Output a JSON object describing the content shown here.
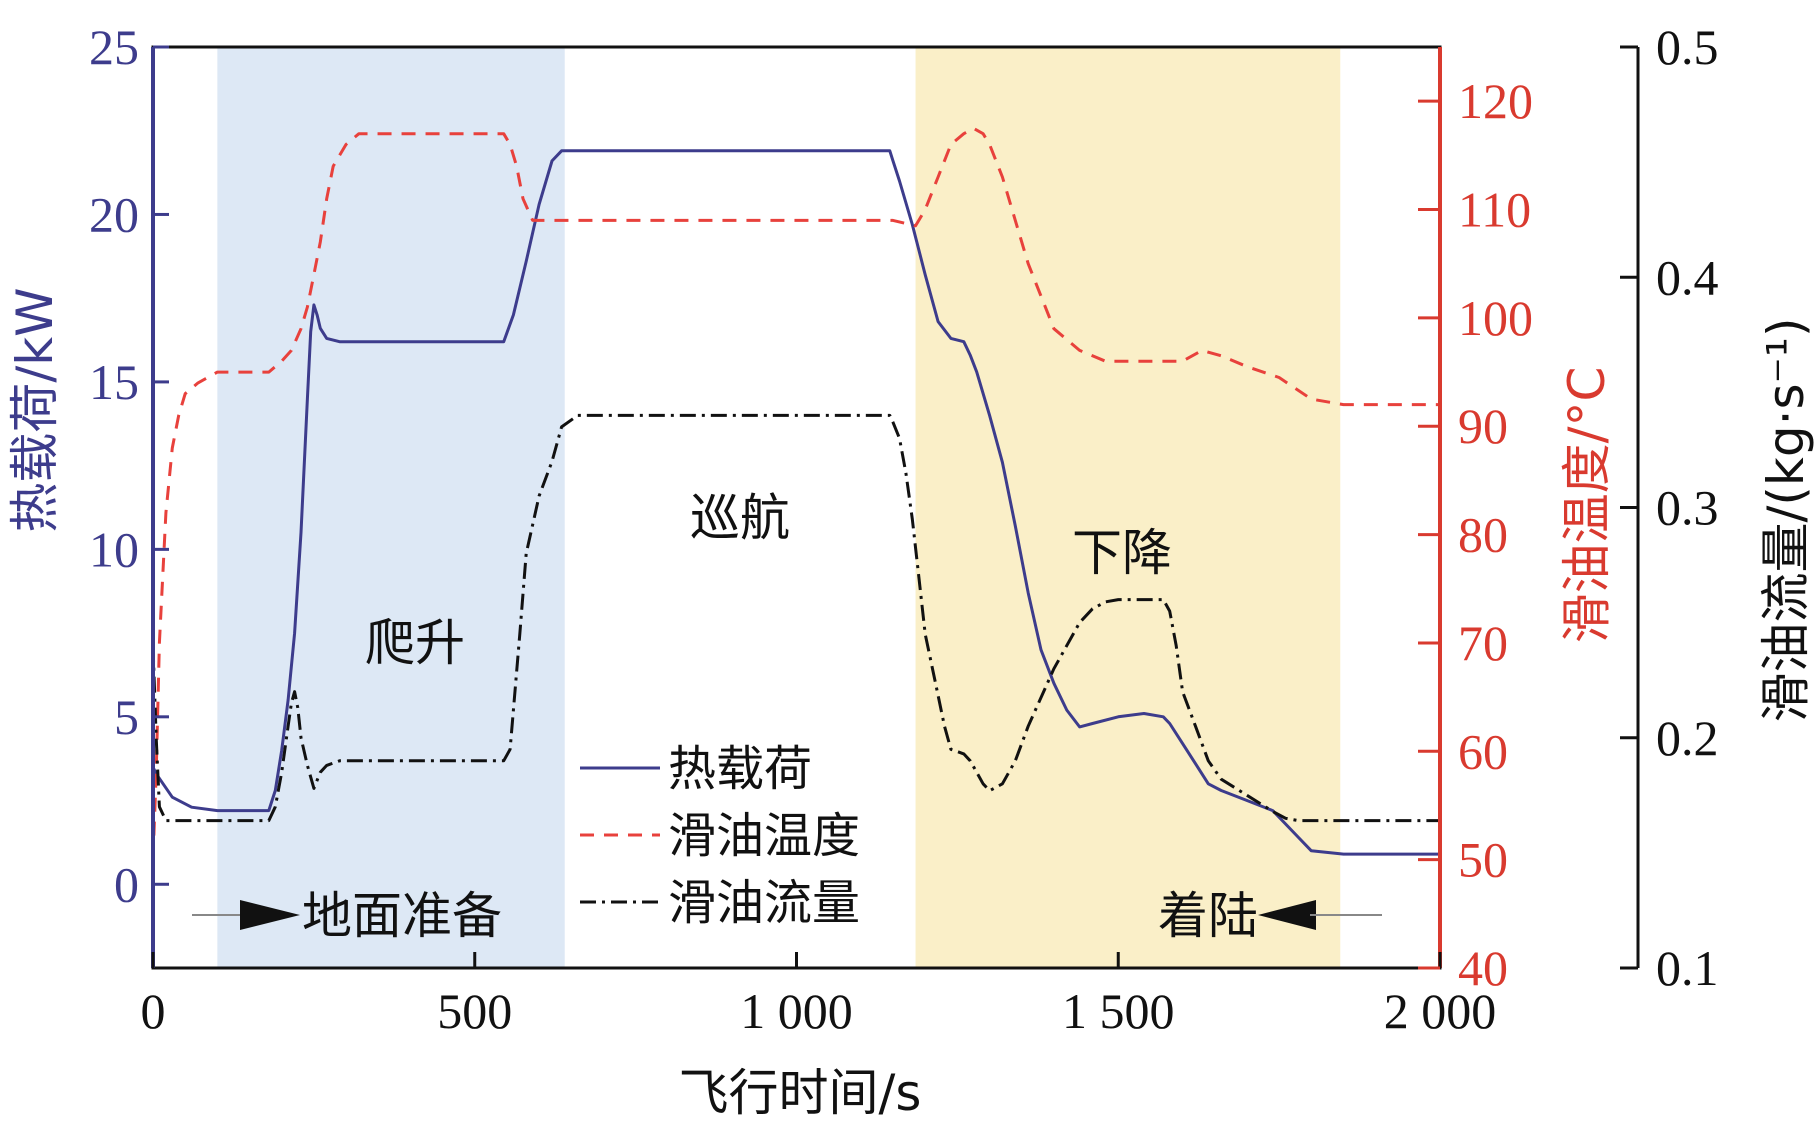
{
  "chart_data": {
    "type": "line",
    "xlabel": "飞行时间/s",
    "ylabel_left": "热载荷/kW",
    "ylabel_right1": "滑油温度/°C",
    "ylabel_right2": "滑油流量/(kg·s⁻¹)",
    "x_ticks": [
      "0",
      "500",
      "1 000",
      "1 500",
      "2 000"
    ],
    "y_left_ticks": [
      "0",
      "5",
      "10",
      "15",
      "20",
      "25"
    ],
    "y_right1_ticks": [
      "40",
      "50",
      "60",
      "70",
      "80",
      "90",
      "100",
      "110",
      "120"
    ],
    "y_right2_ticks": [
      "0.1",
      "0.2",
      "0.3",
      "0.4",
      "0.5"
    ],
    "xlim": [
      0,
      2000
    ],
    "ylim_left": [
      -2.5,
      25
    ],
    "ylim_right1": [
      40,
      125
    ],
    "ylim_right2": [
      0.1,
      0.5
    ],
    "phases": [
      {
        "name": "爬升",
        "start": 100,
        "end": 640,
        "color": "#dde8f5"
      },
      {
        "name": "巡航",
        "start": 640,
        "end": 1185,
        "color": "#ffffff"
      },
      {
        "name": "下降",
        "start": 1185,
        "end": 1845,
        "color": "#faefc8"
      }
    ],
    "phase_labels": {
      "ground_prep": "地面准备",
      "climb": "爬升",
      "cruise": "巡航",
      "descent": "下降",
      "landing": "着陆"
    },
    "colors": {
      "heat_load": "#3d3c8c",
      "oil_temp": "#e8413c",
      "oil_flow": "#111111",
      "left_axis": "#3d3c8c",
      "right1_axis": "#d93a2f",
      "right2_axis": "#111111"
    },
    "series": [
      {
        "name": "热载荷",
        "axis": "left",
        "x": [
          0,
          5,
          30,
          60,
          100,
          180,
          190,
          200,
          210,
          220,
          230,
          240,
          245,
          250,
          255,
          260,
          270,
          290,
          320,
          400,
          500,
          545,
          560,
          580,
          600,
          620,
          635,
          660,
          700,
          800,
          900,
          1000,
          1100,
          1145,
          1150,
          1160,
          1180,
          1200,
          1220,
          1240,
          1260,
          1270,
          1280,
          1300,
          1320,
          1340,
          1360,
          1380,
          1400,
          1420,
          1440,
          1460,
          1500,
          1540,
          1570,
          1580,
          1600,
          1620,
          1640,
          1660,
          1700,
          1740,
          1760,
          1780,
          1800,
          1850,
          1900,
          2000
        ],
        "y": [
          3.5,
          3.3,
          2.6,
          2.3,
          2.2,
          2.2,
          2.8,
          4.0,
          5.5,
          7.5,
          10.5,
          14.5,
          16.5,
          17.3,
          17.0,
          16.6,
          16.3,
          16.2,
          16.2,
          16.2,
          16.2,
          16.2,
          17.0,
          18.6,
          20.3,
          21.6,
          21.9,
          21.9,
          21.9,
          21.9,
          21.9,
          21.9,
          21.9,
          21.9,
          21.6,
          21.0,
          19.7,
          18.2,
          16.8,
          16.3,
          16.2,
          15.8,
          15.3,
          14.0,
          12.6,
          10.7,
          8.7,
          7.0,
          6.0,
          5.2,
          4.7,
          4.8,
          5.0,
          5.1,
          5.0,
          4.8,
          4.2,
          3.6,
          3.0,
          2.8,
          2.5,
          2.2,
          1.8,
          1.4,
          1.0,
          0.9,
          0.9,
          0.9
        ]
      },
      {
        "name": "滑油温度",
        "axis": "right1",
        "x": [
          0,
          5,
          10,
          20,
          30,
          40,
          50,
          70,
          100,
          150,
          180,
          200,
          215,
          230,
          240,
          250,
          260,
          270,
          280,
          300,
          320,
          400,
          500,
          545,
          555,
          565,
          575,
          590,
          620,
          700,
          900,
          1100,
          1150,
          1185,
          1190,
          1200,
          1220,
          1240,
          1260,
          1275,
          1290,
          1300,
          1320,
          1340,
          1360,
          1400,
          1440,
          1480,
          1520,
          1560,
          1600,
          1630,
          1660,
          1700,
          1750,
          1800,
          1850,
          1900,
          2000
        ],
        "y": [
          50,
          58,
          70,
          82,
          88,
          91,
          93,
          94,
          95,
          95,
          95,
          96,
          97,
          99,
          101,
          104,
          107,
          111,
          114,
          116,
          117,
          117,
          117,
          117,
          116,
          114,
          111,
          109,
          109,
          109,
          109,
          109,
          109,
          108.5,
          109,
          110,
          113,
          116,
          117,
          117.5,
          117,
          116,
          113,
          109,
          105,
          99,
          97,
          96,
          96,
          96,
          96,
          97,
          96.5,
          95.5,
          94.5,
          92.5,
          92,
          92,
          92
        ]
      },
      {
        "name": "滑油流量",
        "axis": "right2",
        "x": [
          0,
          5,
          10,
          20,
          40,
          100,
          180,
          190,
          200,
          210,
          215,
          220,
          225,
          230,
          240,
          250,
          260,
          270,
          290,
          320,
          400,
          500,
          545,
          555,
          570,
          580,
          600,
          620,
          635,
          660,
          700,
          800,
          900,
          1000,
          1100,
          1145,
          1150,
          1160,
          1170,
          1180,
          1190,
          1200,
          1215,
          1230,
          1240,
          1260,
          1270,
          1280,
          1290,
          1300,
          1320,
          1340,
          1360,
          1400,
          1440,
          1460,
          1480,
          1500,
          1520,
          1540,
          1570,
          1580,
          1590,
          1600,
          1620,
          1640,
          1660,
          1700,
          1740,
          1760,
          1780,
          1800,
          1850,
          1900,
          1950,
          2000
        ],
        "y": [
          0.24,
          0.2,
          0.17,
          0.164,
          0.164,
          0.164,
          0.164,
          0.17,
          0.185,
          0.205,
          0.215,
          0.22,
          0.213,
          0.2,
          0.188,
          0.178,
          0.185,
          0.188,
          0.19,
          0.19,
          0.19,
          0.19,
          0.19,
          0.195,
          0.245,
          0.28,
          0.305,
          0.32,
          0.335,
          0.34,
          0.34,
          0.34,
          0.34,
          0.34,
          0.34,
          0.34,
          0.337,
          0.33,
          0.315,
          0.295,
          0.27,
          0.245,
          0.225,
          0.205,
          0.195,
          0.193,
          0.19,
          0.185,
          0.18,
          0.177,
          0.18,
          0.19,
          0.205,
          0.23,
          0.25,
          0.256,
          0.259,
          0.26,
          0.26,
          0.26,
          0.26,
          0.255,
          0.24,
          0.22,
          0.205,
          0.19,
          0.182,
          0.175,
          0.168,
          0.165,
          0.164,
          0.164,
          0.164,
          0.164,
          0.164,
          0.164
        ]
      }
    ]
  }
}
